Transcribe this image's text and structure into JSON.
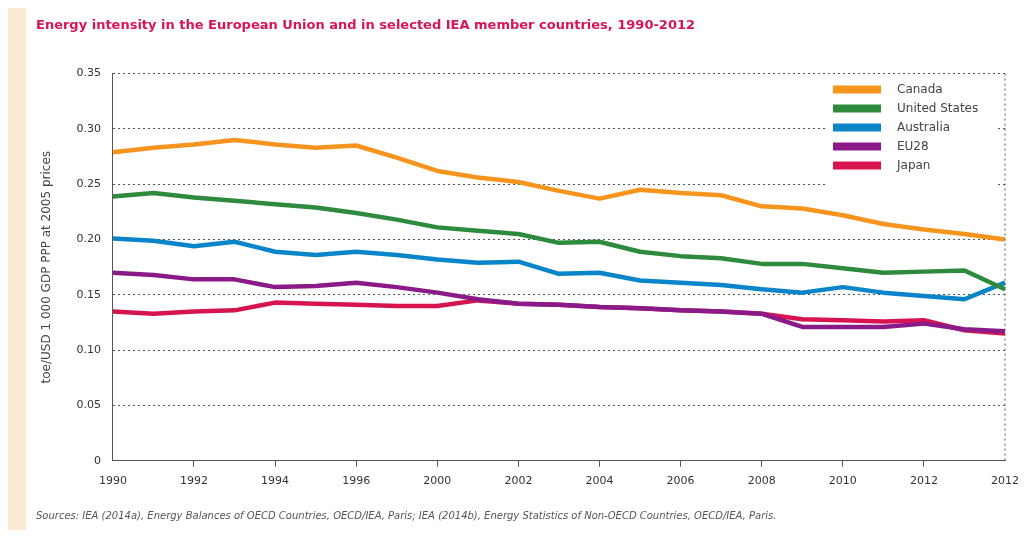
{
  "chart_data": {
    "type": "line",
    "title": "Energy intensity in the European Union and in selected IEA member countries, 1990-2012",
    "ylabel": "toe/USD 1 000 GDP PPP at 2005 prices",
    "annotations": [
      "Sources: IEA (2014a), Energy Balances of OECD Countries, OECD/IEA, Paris; IEA (2014b), Energy Statistics of Non-OECD Countries, OECD/IEA, Paris."
    ],
    "categories": [
      "1990",
      null,
      "1992",
      null,
      "1994",
      null,
      "1996",
      null,
      "2000",
      null,
      "2002",
      null,
      "2004",
      null,
      "2006",
      null,
      "2008",
      null,
      "2010",
      null,
      "2012",
      null,
      "2012"
    ],
    "series": [
      {
        "name": "Canada",
        "color": "#f7941d",
        "values": [
          0.279,
          0.283,
          0.286,
          0.29,
          0.286,
          0.283,
          0.285,
          0.274,
          0.262,
          0.256,
          0.252,
          0.244,
          0.237,
          0.245,
          0.242,
          0.24,
          0.23,
          0.228,
          0.222,
          0.214,
          0.209,
          0.205,
          0.2
        ]
      },
      {
        "name": "United States",
        "color": "#2e8b3e",
        "values": [
          0.239,
          0.242,
          0.238,
          0.235,
          0.232,
          0.229,
          0.224,
          0.218,
          0.211,
          0.208,
          0.205,
          0.197,
          0.198,
          0.189,
          0.185,
          0.183,
          0.178,
          0.178,
          0.174,
          0.17,
          0.171,
          0.172,
          0.155
        ]
      },
      {
        "name": "Australia",
        "color": "#0a85c9",
        "values": [
          0.201,
          0.199,
          0.194,
          0.198,
          0.189,
          0.186,
          0.189,
          0.186,
          0.182,
          0.179,
          0.18,
          0.169,
          0.17,
          0.163,
          0.161,
          0.159,
          0.155,
          0.152,
          0.157,
          0.152,
          0.149,
          0.146,
          0.161
        ]
      },
      {
        "name": "EU28",
        "color": "#8b1a89",
        "values": [
          0.17,
          0.168,
          0.164,
          0.164,
          0.157,
          0.158,
          0.161,
          0.157,
          0.152,
          0.146,
          0.142,
          0.141,
          0.139,
          0.138,
          0.136,
          0.135,
          0.133,
          0.121,
          0.121,
          0.121,
          0.124,
          0.119,
          0.117
        ]
      },
      {
        "name": "Japan",
        "color": "#d7144f",
        "values": [
          0.135,
          0.133,
          0.135,
          0.136,
          0.143,
          0.142,
          0.141,
          0.14,
          0.14,
          0.145,
          0.142,
          0.141,
          0.139,
          0.138,
          0.136,
          0.135,
          0.133,
          0.128,
          0.127,
          0.126,
          0.127,
          0.118,
          0.115
        ]
      }
    ],
    "ylim": [
      0,
      0.35
    ],
    "yticks": [
      0,
      0.05,
      {
        "value": 0.1,
        "label": "0.10"
      },
      0.15,
      {
        "value": 0.2,
        "label": "0.20"
      },
      0.25,
      {
        "value": 0.3,
        "label": "0.30"
      },
      0.35
    ],
    "grid": "y",
    "legend": "top right",
    "marker": "none",
    "line_style": "solid"
  }
}
